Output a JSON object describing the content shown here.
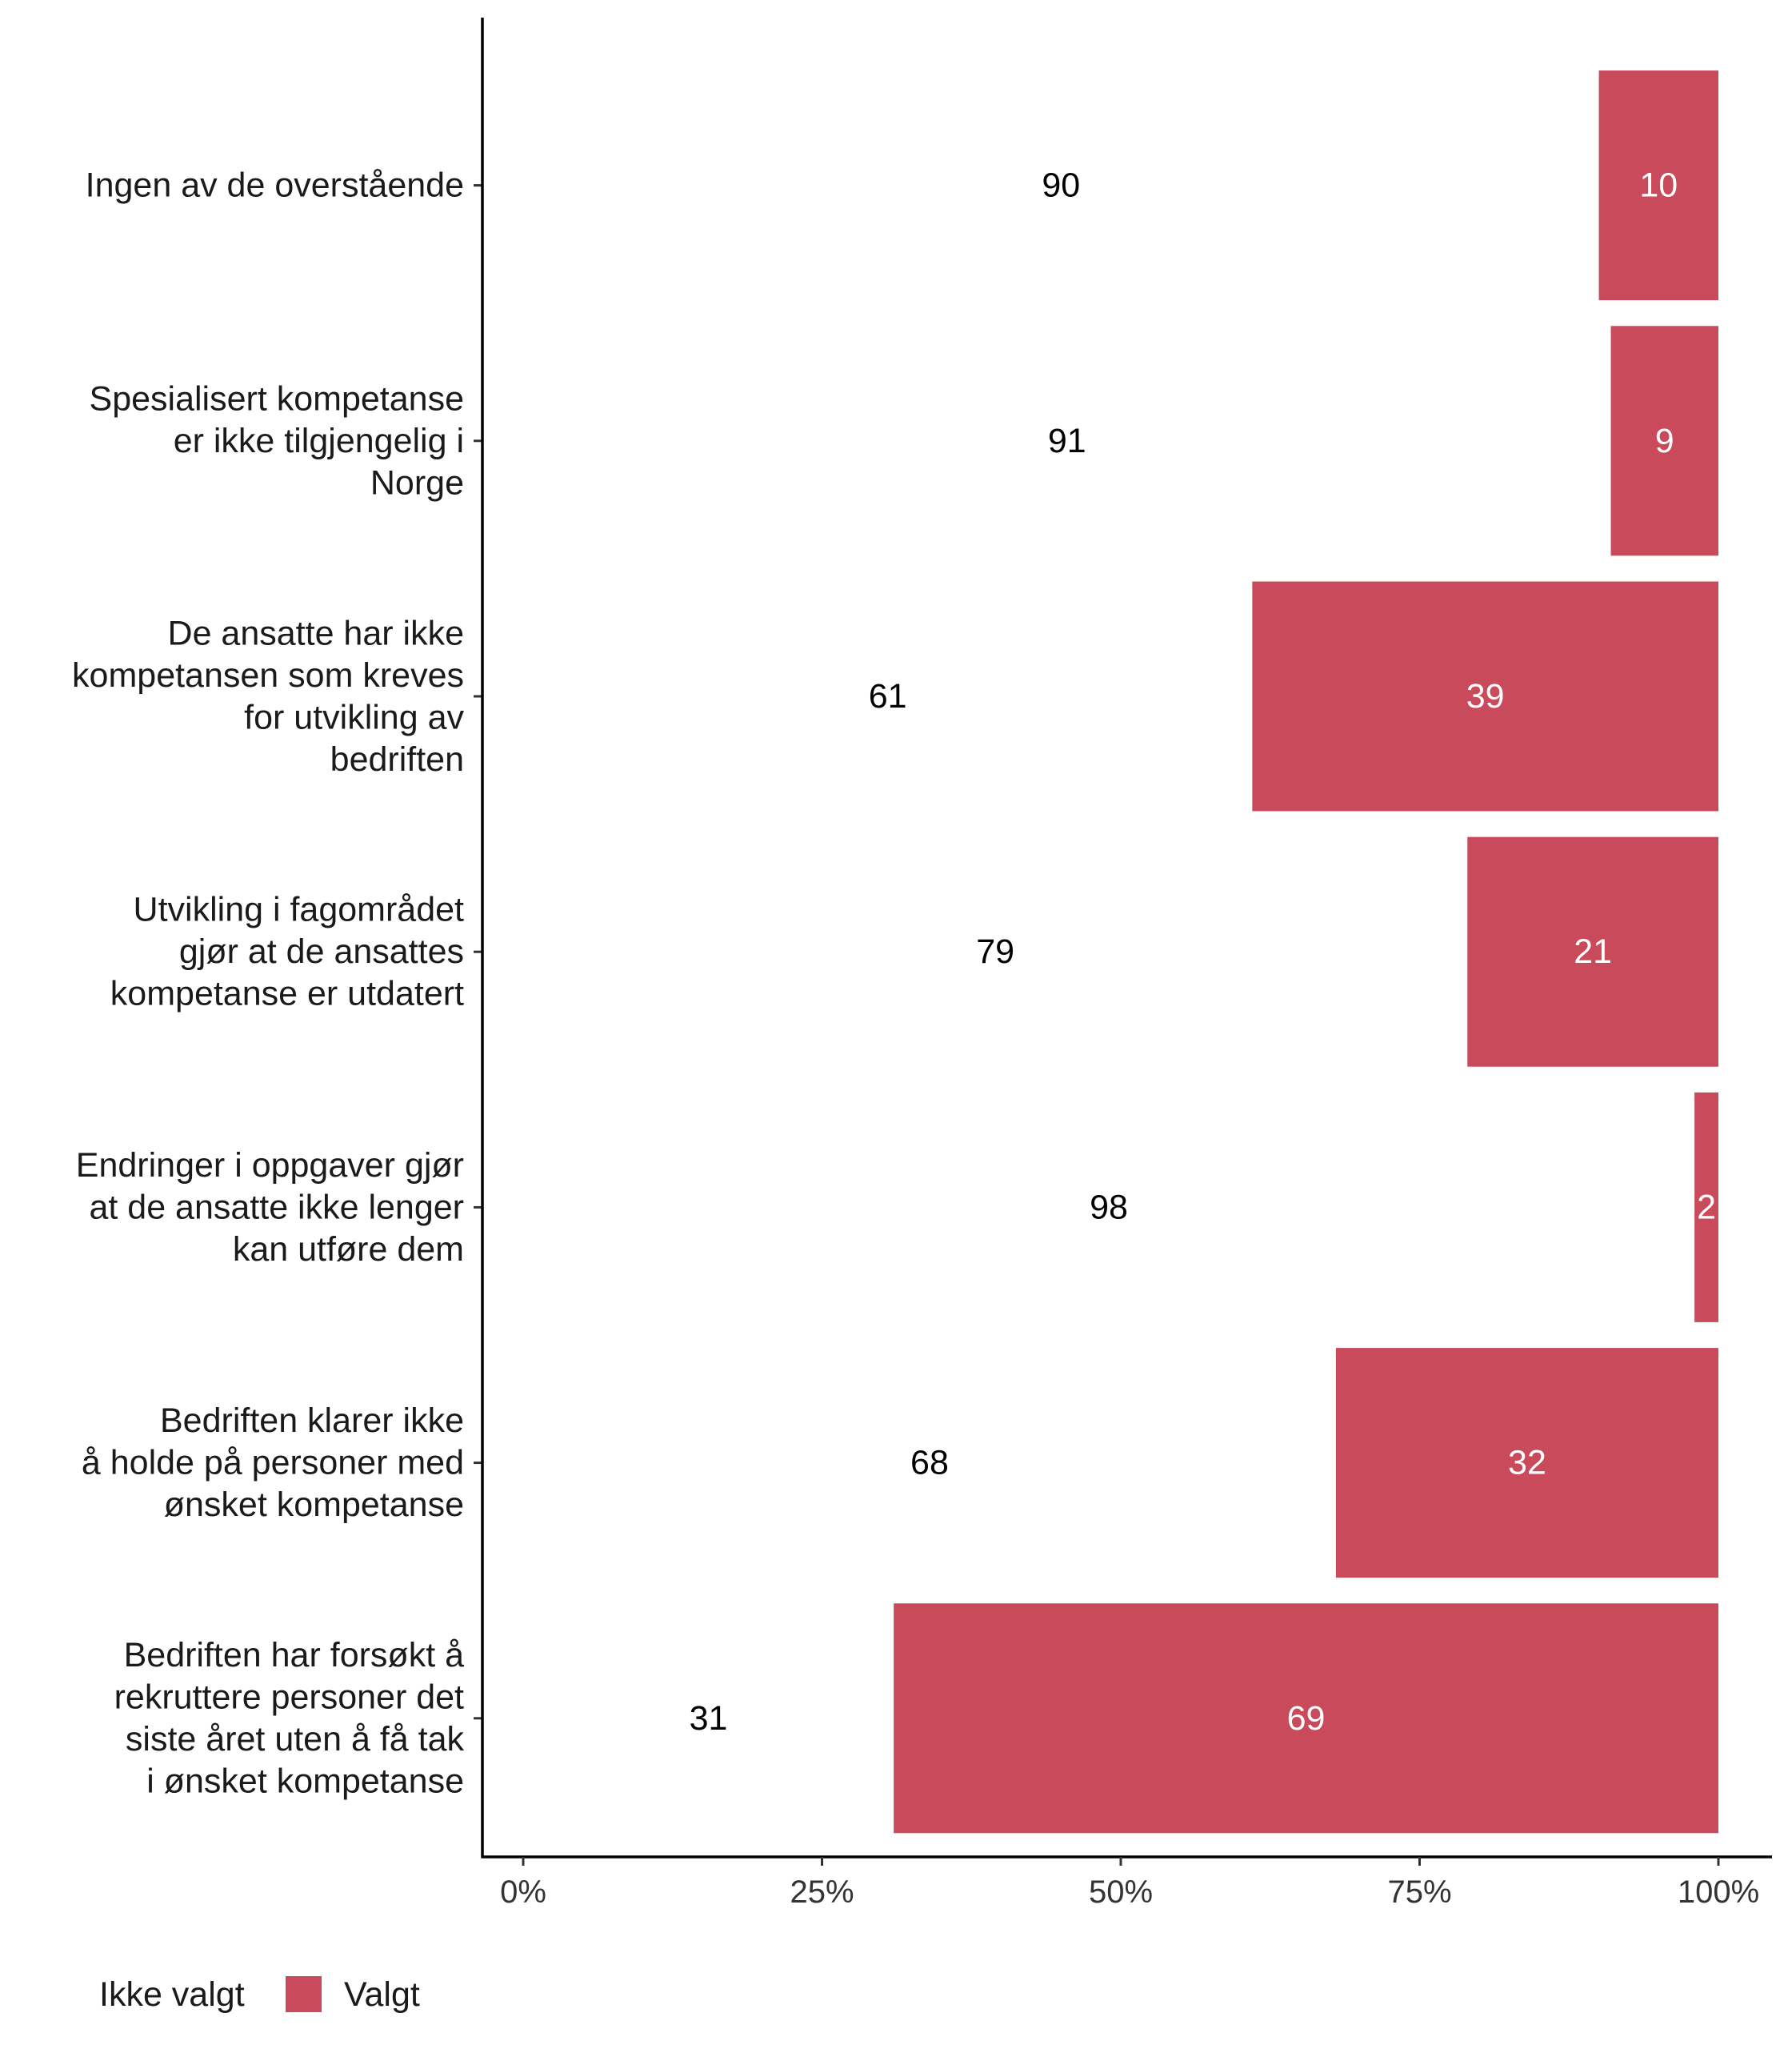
{
  "chart_data": {
    "type": "bar",
    "orientation": "horizontal",
    "stacked": "percent",
    "categories": [
      [
        "Ingen av de overstående"
      ],
      [
        "Spesialisert kompetanse",
        "er ikke tilgjengelig i",
        "Norge"
      ],
      [
        "De ansatte har ikke",
        "kompetansen som kreves",
        "for utvikling av",
        "bedriften"
      ],
      [
        "Utvikling i fagområdet",
        "gjør at de ansattes",
        "kompetanse er utdatert"
      ],
      [
        "Endringer i oppgaver gjør",
        "at de ansatte ikke lenger",
        "kan utføre dem"
      ],
      [
        "Bedriften klarer ikke",
        "å holde på personer med",
        "ønsket kompetanse"
      ],
      [
        "Bedriften har forsøkt å",
        "rekruttere personer det",
        "siste året uten å få tak",
        "i ønsket kompetanse"
      ]
    ],
    "series": [
      {
        "name": "Ikke valgt",
        "color": "#ffffff",
        "label_color": "#000000",
        "values": [
          90,
          91,
          61,
          79,
          98,
          68,
          31
        ]
      },
      {
        "name": "Valgt",
        "color": "#c94a5a",
        "label_color": "#ffffff",
        "values": [
          10,
          9,
          39,
          21,
          2,
          32,
          69
        ]
      }
    ],
    "x_ticks": [
      "0%",
      "25%",
      "50%",
      "75%",
      "100%"
    ],
    "xlim": [
      0,
      100
    ],
    "title": "",
    "xlabel": "",
    "ylabel": "",
    "legend_position": "bottom-left"
  }
}
